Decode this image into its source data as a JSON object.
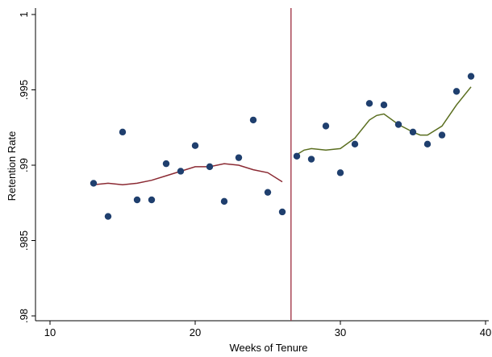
{
  "chart_data": {
    "type": "scatter",
    "title": "",
    "xlabel": "Weeks of Tenure",
    "ylabel": "Retention Rate",
    "xlim": [
      10,
      40
    ],
    "ylim": [
      0.98,
      1.0
    ],
    "x_ticks": [
      10,
      20,
      30,
      40
    ],
    "x_tick_labels": [
      "10",
      "20",
      "30",
      "40"
    ],
    "y_ticks": [
      0.98,
      0.985,
      0.99,
      0.995,
      1.0
    ],
    "y_tick_labels": [
      ".98",
      ".985",
      ".99",
      ".995",
      "1"
    ],
    "grid": false,
    "vertical_line_x": 26.6,
    "colors": {
      "points": "#1f3f6e",
      "left_fit": "#8b2a33",
      "right_fit": "#5a6e1f",
      "vline": "#a33a4a"
    },
    "points": [
      {
        "x": 13,
        "y": 0.9888
      },
      {
        "x": 14,
        "y": 0.9866
      },
      {
        "x": 15,
        "y": 0.9922
      },
      {
        "x": 16,
        "y": 0.9877
      },
      {
        "x": 17,
        "y": 0.9877
      },
      {
        "x": 18,
        "y": 0.9901
      },
      {
        "x": 19,
        "y": 0.9896
      },
      {
        "x": 20,
        "y": 0.9913
      },
      {
        "x": 21,
        "y": 0.9899
      },
      {
        "x": 22,
        "y": 0.9876
      },
      {
        "x": 23,
        "y": 0.9905
      },
      {
        "x": 24,
        "y": 0.993
      },
      {
        "x": 25,
        "y": 0.9882
      },
      {
        "x": 26,
        "y": 0.9869
      },
      {
        "x": 27,
        "y": 0.9906
      },
      {
        "x": 28,
        "y": 0.9904
      },
      {
        "x": 29,
        "y": 0.9926
      },
      {
        "x": 30,
        "y": 0.9895
      },
      {
        "x": 31,
        "y": 0.9914
      },
      {
        "x": 32,
        "y": 0.9941
      },
      {
        "x": 33,
        "y": 0.994
      },
      {
        "x": 34,
        "y": 0.9927
      },
      {
        "x": 35,
        "y": 0.9922
      },
      {
        "x": 36,
        "y": 0.9914
      },
      {
        "x": 37,
        "y": 0.992
      },
      {
        "x": 38,
        "y": 0.9949
      },
      {
        "x": 39,
        "y": 0.9959
      }
    ],
    "fit_left": {
      "x": [
        13,
        14,
        15,
        16,
        17,
        18,
        19,
        20,
        21,
        22,
        23,
        24,
        25,
        26
      ],
      "y": [
        0.9887,
        0.9888,
        0.9887,
        0.9888,
        0.989,
        0.9893,
        0.9896,
        0.9899,
        0.9899,
        0.9901,
        0.99,
        0.9897,
        0.9895,
        0.9889
      ]
    },
    "fit_right": {
      "x": [
        27,
        27.5,
        28,
        29,
        30,
        31,
        32,
        32.5,
        33,
        34,
        35,
        35.5,
        36,
        37,
        38,
        39
      ],
      "y": [
        0.9907,
        0.991,
        0.9911,
        0.991,
        0.9911,
        0.9918,
        0.993,
        0.9933,
        0.9934,
        0.9927,
        0.9922,
        0.992,
        0.992,
        0.9926,
        0.994,
        0.9952
      ]
    }
  }
}
